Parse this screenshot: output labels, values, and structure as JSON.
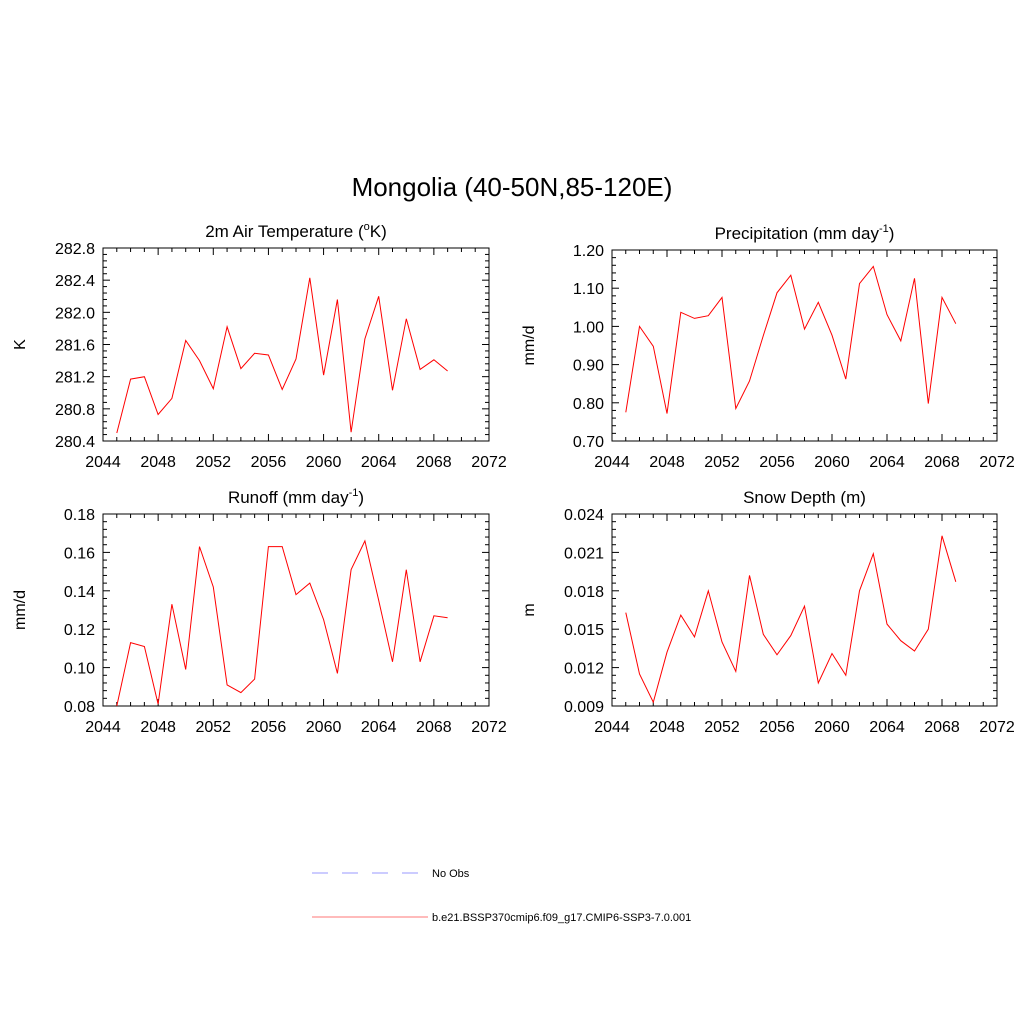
{
  "title": "Mongolia (40-50N,85-120E)",
  "legend": {
    "items": [
      {
        "label": "No Obs",
        "color": "#9999ff",
        "dashed": true
      },
      {
        "label": "b.e21.BSSP370cmip6.f09_g17.CMIP6-SSP3-7.0.001",
        "color": "#ff7777",
        "dashed": false
      }
    ]
  },
  "chart_data": [
    {
      "type": "line",
      "title": "2m Air Temperature (",
      "title_sup": "o",
      "title_tail": "K)",
      "ylabel": "K",
      "xlim": [
        2044,
        2072
      ],
      "ylim": [
        280.4,
        282.8
      ],
      "xticks": [
        2044,
        2048,
        2052,
        2056,
        2060,
        2064,
        2068,
        2072
      ],
      "yticks": [
        "280.4",
        "280.8",
        "281.2",
        "281.6",
        "282.0",
        "282.4",
        "282.8"
      ],
      "color": "#ff0000",
      "x": [
        2045,
        2046,
        2047,
        2048,
        2049,
        2050,
        2051,
        2052,
        2053,
        2054,
        2055,
        2056,
        2057,
        2058,
        2059,
        2060,
        2061,
        2062,
        2063,
        2064,
        2065,
        2066,
        2067,
        2068,
        2069
      ],
      "y": [
        280.5,
        281.17,
        281.2,
        280.73,
        280.93,
        281.65,
        281.4,
        281.05,
        281.82,
        281.3,
        281.49,
        281.47,
        281.04,
        281.42,
        282.43,
        281.22,
        282.16,
        280.51,
        281.67,
        282.2,
        281.03,
        281.92,
        281.29,
        281.41,
        281.27
      ]
    },
    {
      "type": "line",
      "title": "Precipitation (mm day",
      "title_sup": "-1",
      "title_tail": ")",
      "ylabel": "mm/d",
      "xlim": [
        2044,
        2072
      ],
      "ylim": [
        0.7,
        1.2
      ],
      "xticks": [
        2044,
        2048,
        2052,
        2056,
        2060,
        2064,
        2068,
        2072
      ],
      "yticks": [
        "0.70",
        "0.80",
        "0.90",
        "1.00",
        "1.10",
        "1.20"
      ],
      "color": "#ff0000",
      "x": [
        2045,
        2046,
        2047,
        2048,
        2049,
        2050,
        2051,
        2052,
        2053,
        2054,
        2055,
        2056,
        2057,
        2058,
        2059,
        2060,
        2061,
        2062,
        2063,
        2064,
        2065,
        2066,
        2067,
        2068,
        2069
      ],
      "y": [
        0.775,
        1.0,
        0.948,
        0.772,
        1.037,
        1.021,
        1.028,
        1.076,
        0.785,
        0.857,
        0.976,
        1.088,
        1.134,
        0.993,
        1.063,
        0.977,
        0.862,
        1.112,
        1.157,
        1.031,
        0.962,
        1.126,
        0.798,
        1.076,
        1.007
      ]
    },
    {
      "type": "line",
      "title": "Runoff (mm day",
      "title_sup": "-1",
      "title_tail": ")",
      "ylabel": "mm/d",
      "xlim": [
        2044,
        2072
      ],
      "ylim": [
        0.08,
        0.18
      ],
      "xticks": [
        2044,
        2048,
        2052,
        2056,
        2060,
        2064,
        2068,
        2072
      ],
      "yticks": [
        "0.08",
        "0.10",
        "0.12",
        "0.14",
        "0.16",
        "0.18"
      ],
      "color": "#ff0000",
      "x": [
        2045,
        2046,
        2047,
        2048,
        2049,
        2050,
        2051,
        2052,
        2053,
        2054,
        2055,
        2056,
        2057,
        2058,
        2059,
        2060,
        2061,
        2062,
        2063,
        2064,
        2065,
        2066,
        2067,
        2068,
        2069
      ],
      "y": [
        0.08,
        0.113,
        0.111,
        0.081,
        0.133,
        0.099,
        0.163,
        0.142,
        0.091,
        0.087,
        0.094,
        0.163,
        0.163,
        0.138,
        0.144,
        0.125,
        0.097,
        0.151,
        0.166,
        0.135,
        0.103,
        0.151,
        0.103,
        0.127,
        0.126
      ]
    },
    {
      "type": "line",
      "title": "Snow Depth (m)",
      "title_sup": "",
      "title_tail": "",
      "ylabel": "m",
      "xlim": [
        2044,
        2072
      ],
      "ylim": [
        0.009,
        0.024
      ],
      "xticks": [
        2044,
        2048,
        2052,
        2056,
        2060,
        2064,
        2068,
        2072
      ],
      "yticks": [
        "0.009",
        "0.012",
        "0.015",
        "0.018",
        "0.021",
        "0.024"
      ],
      "color": "#ff0000",
      "x": [
        2045,
        2046,
        2047,
        2048,
        2049,
        2050,
        2051,
        2052,
        2053,
        2054,
        2055,
        2056,
        2057,
        2058,
        2059,
        2060,
        2061,
        2062,
        2063,
        2064,
        2065,
        2066,
        2067,
        2068,
        2069
      ],
      "y": [
        0.0163,
        0.0115,
        0.0093,
        0.0132,
        0.0161,
        0.0144,
        0.018,
        0.014,
        0.0117,
        0.0192,
        0.0146,
        0.013,
        0.0145,
        0.0168,
        0.0108,
        0.0131,
        0.0114,
        0.018,
        0.0209,
        0.0154,
        0.0141,
        0.0133,
        0.015,
        0.0223,
        0.0187
      ]
    }
  ]
}
